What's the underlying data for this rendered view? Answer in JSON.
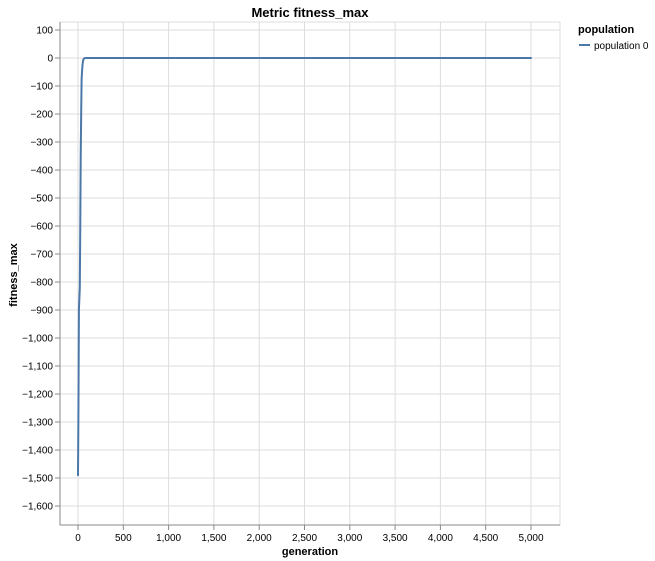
{
  "chart_data": {
    "type": "line",
    "title": "Metric fitness_max",
    "xlabel": "generation",
    "ylabel": "fitness_max",
    "xlim": [
      0,
      5000
    ],
    "ylim": [
      -1650,
      100
    ],
    "x_ticks": [
      0,
      500,
      1000,
      1500,
      2000,
      2500,
      3000,
      3500,
      4000,
      4500,
      5000
    ],
    "x_tick_labels": [
      "0",
      "500",
      "1,000",
      "1,500",
      "2,000",
      "2,500",
      "3,000",
      "3,500",
      "4,000",
      "4,500",
      "5,000"
    ],
    "y_ticks": [
      100,
      0,
      -100,
      -200,
      -300,
      -400,
      -500,
      -600,
      -700,
      -800,
      -900,
      -1000,
      -1100,
      -1200,
      -1300,
      -1400,
      -1500,
      -1600
    ],
    "y_tick_labels": [
      "100",
      "0",
      "−100",
      "−200",
      "−300",
      "−400",
      "−500",
      "−600",
      "−700",
      "−800",
      "−900",
      "−1,000",
      "−1,100",
      "−1,200",
      "−1,300",
      "−1,400",
      "−1,500",
      "−1,600"
    ],
    "grid": true,
    "legend": {
      "title": "population",
      "position": "top-right"
    },
    "series": [
      {
        "name": "population 0",
        "color": "#4c78a8",
        "x": [
          0,
          5,
          10,
          15,
          20,
          25,
          30,
          35,
          40,
          45,
          50,
          55,
          60,
          70,
          80,
          100,
          200,
          500,
          1000,
          2000,
          3000,
          4000,
          5000
        ],
        "y": [
          -1490,
          -1250,
          -900,
          -860,
          -820,
          -600,
          -350,
          -200,
          -75,
          -45,
          -25,
          -12,
          -5,
          -1,
          0,
          0,
          0,
          0,
          0,
          0,
          0,
          0,
          0
        ]
      }
    ]
  }
}
